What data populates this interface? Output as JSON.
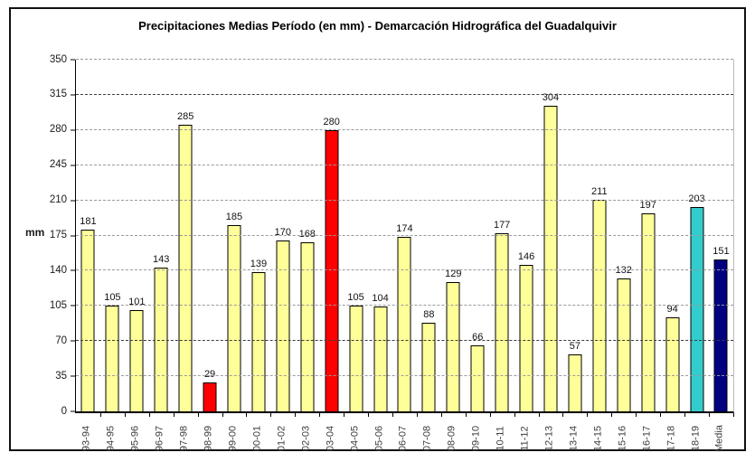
{
  "chart_data": {
    "type": "bar",
    "title": "Precipitaciones Medias Período (en mm) - Demarcación Hidrográfica del Guadalquivir",
    "ylabel": "mm",
    "xlabel": "",
    "ylim": [
      0,
      350
    ],
    "yticks": [
      0,
      35,
      70,
      105,
      140,
      175,
      210,
      245,
      280,
      315,
      350
    ],
    "grid": {
      "interval": 35,
      "style": "dashed",
      "color": "#9a9a9a",
      "dark_ticks": [
        70,
        315
      ],
      "dark_color": "#3c3c3c"
    },
    "legend": "none",
    "categories": [
      "93-94",
      "94-95",
      "95-96",
      "96-97",
      "97-98",
      "98-99",
      "99-00",
      "00-01",
      "01-02",
      "02-03",
      "03-04",
      "04-05",
      "05-06",
      "06-07",
      "07-08",
      "08-09",
      "09-10",
      "10-11",
      "11-12",
      "12-13",
      "13-14",
      "14-15",
      "15-16",
      "16-17",
      "17-18",
      "18-19",
      "Media"
    ],
    "values": [
      181,
      105,
      101,
      143,
      285,
      29,
      185,
      139,
      170,
      168,
      280,
      105,
      104,
      174,
      88,
      129,
      66,
      177,
      146,
      304,
      57,
      211,
      132,
      197,
      94,
      203,
      151
    ],
    "colors": {
      "default": "#FFFF99",
      "highlight_red": "#FF0000",
      "current_cyan": "#33CCCC",
      "media_navy": "#000080",
      "bar_border": "#000000"
    },
    "bar_color_keys": [
      "default",
      "default",
      "default",
      "default",
      "default",
      "highlight_red",
      "default",
      "default",
      "default",
      "default",
      "highlight_red",
      "default",
      "default",
      "default",
      "default",
      "default",
      "default",
      "default",
      "default",
      "default",
      "default",
      "default",
      "default",
      "default",
      "default",
      "current_cyan",
      "media_navy"
    ]
  }
}
